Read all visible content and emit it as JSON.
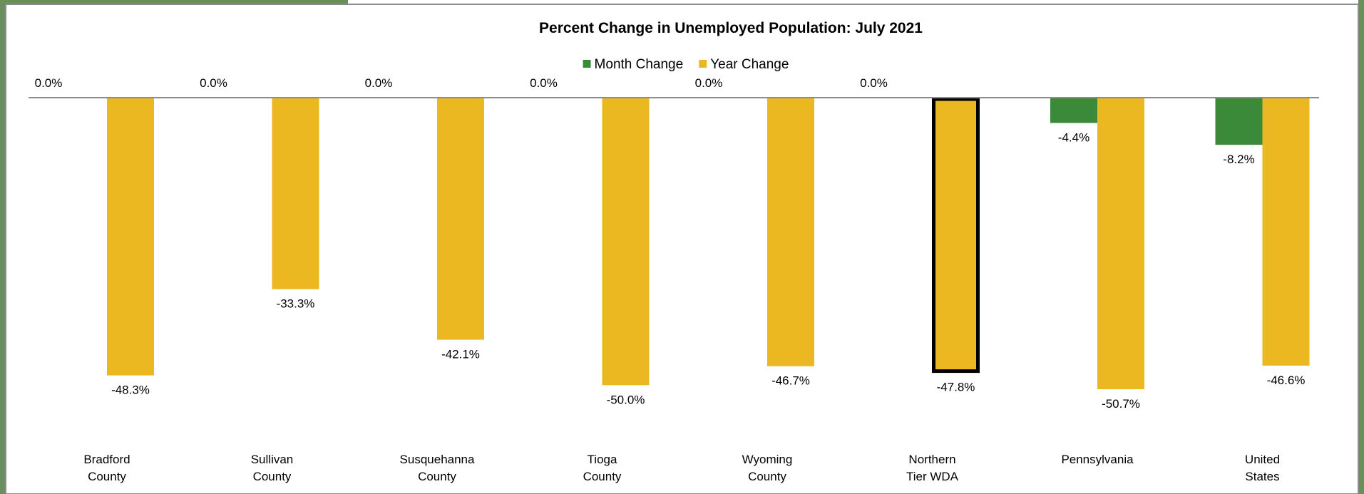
{
  "chart_data": {
    "type": "bar",
    "title": "Percent Change in Unemployed Population: July 2021",
    "categories": [
      [
        "Bradford",
        "County"
      ],
      [
        "Sullivan",
        "County"
      ],
      [
        "Susquehanna",
        "County"
      ],
      [
        "Tioga",
        "County"
      ],
      [
        "Wyoming",
        "County"
      ],
      [
        "Northern",
        "Tier WDA"
      ],
      [
        "Pennsylvania"
      ],
      [
        "United",
        "States"
      ]
    ],
    "series": [
      {
        "name": "Month Change",
        "color": "#3a8a3a",
        "values": [
          0.0,
          0.0,
          0.0,
          0.0,
          0.0,
          0.0,
          -4.4,
          -8.2
        ],
        "labels": [
          "0.0%",
          "0.0%",
          "0.0%",
          "0.0%",
          "0.0%",
          "0.0%",
          "-4.4%",
          "-8.2%"
        ]
      },
      {
        "name": "Year Change",
        "color": "#ecb821",
        "values": [
          -48.3,
          -33.3,
          -42.1,
          -50.0,
          -46.7,
          -47.8,
          -50.7,
          -46.6
        ],
        "labels": [
          "-48.3%",
          "-33.3%",
          "-42.1%",
          "-50.0%",
          "-46.7%",
          "-47.8%",
          "-50.7%",
          "-46.6%"
        ]
      }
    ],
    "highlighted_category": "Northern Tier WDA",
    "legend_position": "top-center",
    "grid": false,
    "ylim": [
      -50.7,
      0
    ]
  }
}
